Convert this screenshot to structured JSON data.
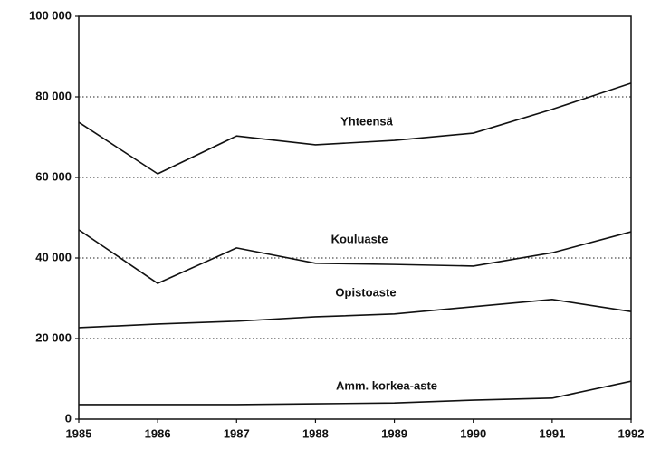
{
  "chart_data": {
    "type": "line",
    "x": [
      1985,
      1986,
      1987,
      1988,
      1989,
      1990,
      1991,
      1992
    ],
    "series": [
      {
        "name": "Yhteensä",
        "color": "#111111",
        "values": [
          73700,
          60900,
          70300,
          68100,
          69200,
          71000,
          76900,
          83400
        ]
      },
      {
        "name": "Kouluaste",
        "color": "#111111",
        "values": [
          47000,
          33700,
          42500,
          38700,
          38400,
          38000,
          41300,
          46500
        ]
      },
      {
        "name": "Opistoaste",
        "color": "#111111",
        "values": [
          22700,
          23600,
          24300,
          25400,
          26100,
          27900,
          29700,
          26700
        ]
      },
      {
        "name": "Amm. korkea-aste",
        "color": "#111111",
        "values": [
          3600,
          3600,
          3600,
          3800,
          4000,
          4700,
          5200,
          9400
        ]
      }
    ],
    "xlim": [
      1985,
      1992
    ],
    "xticks": [
      1985,
      1986,
      1987,
      1988,
      1989,
      1990,
      1991,
      1992
    ],
    "ylim": [
      0,
      100000
    ],
    "yticks": [
      0,
      {
        "value": 20000,
        "label": "20 000"
      },
      {
        "value": 40000,
        "label": "40 000"
      },
      {
        "value": 60000,
        "label": "60 000"
      },
      {
        "value": 80000,
        "label": "80 000"
      },
      {
        "value": 100000,
        "label": "100 000"
      }
    ],
    "grid": true
  }
}
